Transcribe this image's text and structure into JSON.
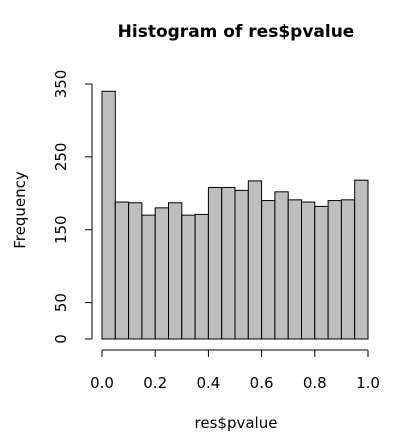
{
  "chart_data": {
    "type": "bar",
    "title": "Histogram of res$pvalue",
    "xlabel": "res$pvalue",
    "ylabel": "Frequency",
    "bin_edges": [
      0,
      0.05,
      0.1,
      0.15,
      0.2,
      0.25,
      0.3,
      0.35,
      0.4,
      0.45,
      0.5,
      0.55,
      0.6,
      0.65,
      0.7,
      0.75,
      0.8,
      0.85,
      0.9,
      0.95,
      1.0
    ],
    "values": [
      340,
      188,
      187,
      170,
      180,
      187,
      170,
      171,
      208,
      208,
      204,
      217,
      190,
      202,
      191,
      188,
      182,
      190,
      191,
      218
    ],
    "xlim": [
      0,
      1
    ],
    "ylim": [
      0,
      350
    ],
    "xticks": [
      "0.0",
      "0.2",
      "0.4",
      "0.6",
      "0.8",
      "1.0"
    ],
    "xtick_values": [
      0,
      0.2,
      0.4,
      0.6,
      0.8,
      1.0
    ],
    "yticks": [
      "0",
      "50",
      "150",
      "250",
      "350"
    ],
    "ytick_values": [
      0,
      50,
      150,
      250,
      350
    ],
    "bar_color": "#bebebe",
    "grid": false
  }
}
